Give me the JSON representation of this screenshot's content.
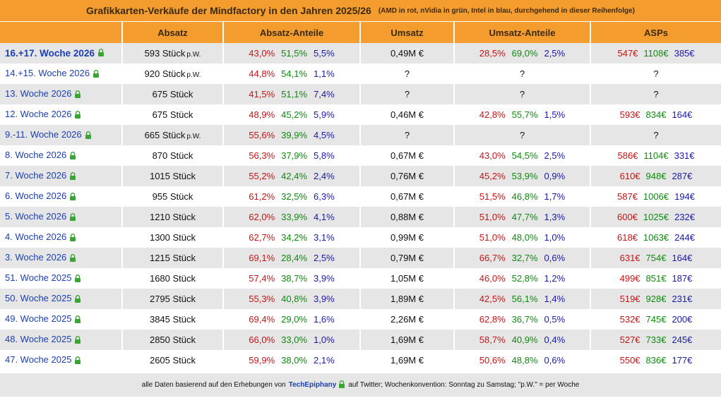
{
  "title": "Grafikkarten-Verkäufe der Mindfactory in den Jahren 2025/26",
  "subtitle": "(AMD in rot, nVidia in grün, Intel in blau, durchgehend in dieser Reihenfolge)",
  "colors": {
    "header_bg": "#f59c2f",
    "amd": "#c81414",
    "nvidia": "#0f8a0f",
    "intel": "#1a1aa8",
    "week": "#1b3fb0",
    "row_alt": "#e6e6e6"
  },
  "lock_icon": "padlock-icon",
  "chart_data": {
    "type": "table",
    "columns": [
      "",
      "Absatz",
      "Absatz-Anteile",
      "Umsatz",
      "Umsatz-Anteile",
      "ASPs"
    ],
    "rows": [
      {
        "week": "16.+17. Woche 2026",
        "absatz": "593 Stück",
        "pw": "p.W.",
        "absatz_anteile": [
          "43,0%",
          "51,5%",
          "5,5%"
        ],
        "umsatz": "0,49M €",
        "umsatz_anteile": [
          "28,5%",
          "69,0%",
          "2,5%"
        ],
        "asps": [
          "547€",
          "1108€",
          "385€"
        ]
      },
      {
        "week": "14.+15. Woche 2026",
        "absatz": "920 Stück",
        "pw": "p.W.",
        "absatz_anteile": [
          "44,8%",
          "54,1%",
          "1,1%"
        ],
        "umsatz": "?",
        "umsatz_anteile_text": "?",
        "asps_text": "?"
      },
      {
        "week": "13. Woche 2026",
        "absatz": "675 Stück",
        "absatz_anteile": [
          "41,5%",
          "51,1%",
          "7,4%"
        ],
        "umsatz": "?",
        "umsatz_anteile_text": "?",
        "asps_text": "?"
      },
      {
        "week": "12. Woche 2026",
        "absatz": "675 Stück",
        "absatz_anteile": [
          "48,9%",
          "45,2%",
          "5,9%"
        ],
        "umsatz": "0,46M €",
        "umsatz_anteile": [
          "42,8%",
          "55,7%",
          "1,5%"
        ],
        "asps": [
          "593€",
          "834€",
          "164€"
        ]
      },
      {
        "week": "9.-11. Woche 2026",
        "absatz": "665 Stück",
        "pw": "p.W.",
        "absatz_anteile": [
          "55,6%",
          "39,9%",
          "4,5%"
        ],
        "umsatz": "?",
        "umsatz_anteile_text": "?",
        "asps_text": "?"
      },
      {
        "week": "8. Woche 2026",
        "absatz": "870 Stück",
        "absatz_anteile": [
          "56,3%",
          "37,9%",
          "5,8%"
        ],
        "umsatz": "0,67M €",
        "umsatz_anteile": [
          "43,0%",
          "54,5%",
          "2,5%"
        ],
        "asps": [
          "586€",
          "1104€",
          "331€"
        ]
      },
      {
        "week": "7. Woche 2026",
        "absatz": "1015 Stück",
        "absatz_anteile": [
          "55,2%",
          "42,4%",
          "2,4%"
        ],
        "umsatz": "0,76M €",
        "umsatz_anteile": [
          "45,2%",
          "53,9%",
          "0,9%"
        ],
        "asps": [
          "610€",
          "948€",
          "287€"
        ]
      },
      {
        "week": "6. Woche 2026",
        "absatz": "955 Stück",
        "absatz_anteile": [
          "61,2%",
          "32,5%",
          "6,3%"
        ],
        "umsatz": "0,67M €",
        "umsatz_anteile": [
          "51,5%",
          "46,8%",
          "1,7%"
        ],
        "asps": [
          "587€",
          "1006€",
          "194€"
        ]
      },
      {
        "week": "5. Woche 2026",
        "absatz": "1210 Stück",
        "absatz_anteile": [
          "62,0%",
          "33,9%",
          "4,1%"
        ],
        "umsatz": "0,88M €",
        "umsatz_anteile": [
          "51,0%",
          "47,7%",
          "1,3%"
        ],
        "asps": [
          "600€",
          "1025€",
          "232€"
        ]
      },
      {
        "week": "4. Woche 2026",
        "absatz": "1300 Stück",
        "absatz_anteile": [
          "62,7%",
          "34,2%",
          "3,1%"
        ],
        "umsatz": "0,99M €",
        "umsatz_anteile": [
          "51,0%",
          "48,0%",
          "1,0%"
        ],
        "asps": [
          "618€",
          "1063€",
          "244€"
        ]
      },
      {
        "week": "3. Woche 2026",
        "absatz": "1215 Stück",
        "absatz_anteile": [
          "69,1%",
          "28,4%",
          "2,5%"
        ],
        "umsatz": "0,79M €",
        "umsatz_anteile": [
          "66,7%",
          "32,7%",
          "0,6%"
        ],
        "asps": [
          "631€",
          "754€",
          "164€"
        ]
      },
      {
        "week": "51. Woche 2025",
        "absatz": "1680 Stück",
        "absatz_anteile": [
          "57,4%",
          "38,7%",
          "3,9%"
        ],
        "umsatz": "1,05M €",
        "umsatz_anteile": [
          "46,0%",
          "52,8%",
          "1,2%"
        ],
        "asps": [
          "499€",
          "851€",
          "187€"
        ]
      },
      {
        "week": "50. Woche 2025",
        "absatz": "2795 Stück",
        "absatz_anteile": [
          "55,3%",
          "40,8%",
          "3,9%"
        ],
        "umsatz": "1,89M €",
        "umsatz_anteile": [
          "42,5%",
          "56,1%",
          "1,4%"
        ],
        "asps": [
          "519€",
          "928€",
          "231€"
        ]
      },
      {
        "week": "49. Woche 2025",
        "absatz": "3845 Stück",
        "absatz_anteile": [
          "69,4%",
          "29,0%",
          "1,6%"
        ],
        "umsatz": "2,26M €",
        "umsatz_anteile": [
          "62,8%",
          "36,7%",
          "0,5%"
        ],
        "asps": [
          "532€",
          "745€",
          "200€"
        ]
      },
      {
        "week": "48. Woche 2025",
        "absatz": "2850 Stück",
        "absatz_anteile": [
          "66,0%",
          "33,0%",
          "1,0%"
        ],
        "umsatz": "1,69M €",
        "umsatz_anteile": [
          "58,7%",
          "40,9%",
          "0,4%"
        ],
        "asps": [
          "527€",
          "733€",
          "245€"
        ]
      },
      {
        "week": "47. Woche 2025",
        "absatz": "2605 Stück",
        "absatz_anteile": [
          "59,9%",
          "38,0%",
          "2,1%"
        ],
        "umsatz": "1,69M €",
        "umsatz_anteile": [
          "50,6%",
          "48,8%",
          "0,6%"
        ],
        "asps": [
          "550€",
          "836€",
          "177€"
        ]
      }
    ]
  },
  "footer": {
    "prefix": "alle Daten basierend auf den Erhebungen von",
    "brand": "TechEpiphany",
    "suffix": "auf Twitter; Wochenkonvention: Sonntag zu Samstag; \"p.W.\" = per Woche"
  }
}
